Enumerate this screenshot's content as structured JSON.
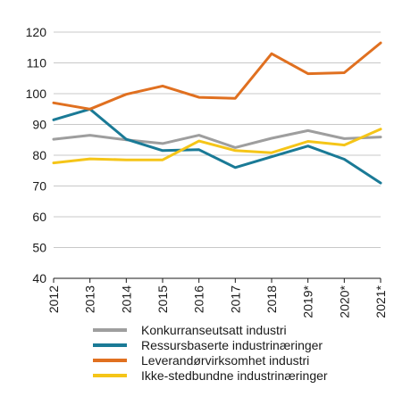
{
  "chart_data": {
    "type": "line",
    "title": "",
    "xlabel": "",
    "ylabel": "",
    "x": [
      "2012",
      "2013",
      "2014",
      "2015",
      "2016",
      "2017",
      "2018",
      "2019*",
      "2020*",
      "2021*"
    ],
    "ylim": [
      40,
      120
    ],
    "yticks": [
      40,
      50,
      60,
      70,
      80,
      90,
      100,
      110,
      120
    ],
    "grid": "horizontal",
    "legend_position": "bottom",
    "series": [
      {
        "name": "Konkurranseutsatt industri",
        "color": "#9e9e9e",
        "values": [
          85.2,
          86.5,
          85.0,
          83.8,
          86.5,
          82.5,
          85.5,
          88.0,
          85.4,
          85.9
        ]
      },
      {
        "name": "Ressursbaserte industrinæringer",
        "color": "#1a7a96",
        "values": [
          91.5,
          95.0,
          85.2,
          81.5,
          81.8,
          76.0,
          79.5,
          83.0,
          78.7,
          71.0
        ]
      },
      {
        "name": "Leverandørvirksomhet industri",
        "color": "#e07020",
        "values": [
          97.0,
          95.0,
          99.8,
          102.5,
          98.8,
          98.5,
          113.0,
          106.5,
          106.8,
          116.5
        ]
      },
      {
        "name": "Ikke-stedbundne industrinæringer",
        "color": "#f5c518",
        "values": [
          77.5,
          78.8,
          78.5,
          78.5,
          84.6,
          81.5,
          80.8,
          84.5,
          83.3,
          88.5
        ]
      }
    ]
  }
}
